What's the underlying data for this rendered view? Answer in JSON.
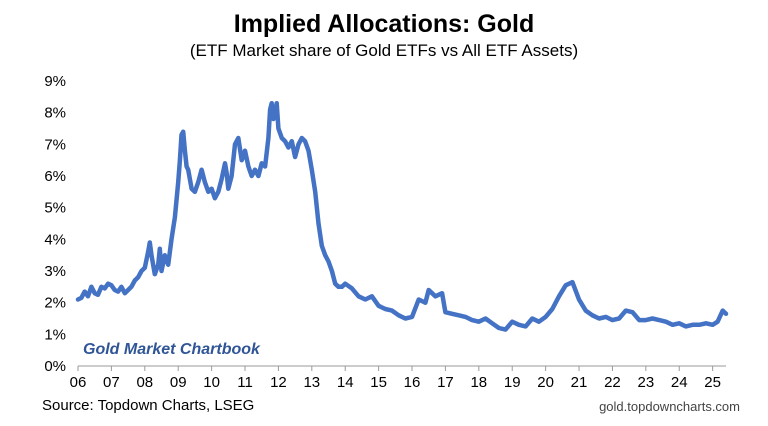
{
  "chart_data": {
    "type": "line",
    "title": "Implied Allocations: Gold",
    "subtitle": "(ETF Market share of Gold ETFs vs All ETF Assets)",
    "watermark": "Gold Market Chartbook",
    "source": "Source: Topdown Charts, LSEG",
    "site": "gold.topdowncharts.com",
    "color": "#4472c4",
    "ylim": [
      0,
      9
    ],
    "xlim": [
      2006,
      2025.4
    ],
    "yticks": [
      {
        "value": 0,
        "label": "0%"
      },
      {
        "value": 1,
        "label": "1%"
      },
      {
        "value": 2,
        "label": "2%"
      },
      {
        "value": 3,
        "label": "3%"
      },
      {
        "value": 4,
        "label": "4%"
      },
      {
        "value": 5,
        "label": "5%"
      },
      {
        "value": 6,
        "label": "6%"
      },
      {
        "value": 7,
        "label": "7%"
      },
      {
        "value": 8,
        "label": "8%"
      },
      {
        "value": 9,
        "label": "9%"
      }
    ],
    "xticks": [
      {
        "value": 2006,
        "label": "06"
      },
      {
        "value": 2007,
        "label": "07"
      },
      {
        "value": 2008,
        "label": "08"
      },
      {
        "value": 2009,
        "label": "09"
      },
      {
        "value": 2010,
        "label": "10"
      },
      {
        "value": 2011,
        "label": "11"
      },
      {
        "value": 2012,
        "label": "12"
      },
      {
        "value": 2013,
        "label": "13"
      },
      {
        "value": 2014,
        "label": "14"
      },
      {
        "value": 2015,
        "label": "15"
      },
      {
        "value": 2016,
        "label": "16"
      },
      {
        "value": 2017,
        "label": "17"
      },
      {
        "value": 2018,
        "label": "18"
      },
      {
        "value": 2019,
        "label": "19"
      },
      {
        "value": 2020,
        "label": "20"
      },
      {
        "value": 2021,
        "label": "21"
      },
      {
        "value": 2022,
        "label": "22"
      },
      {
        "value": 2023,
        "label": "23"
      },
      {
        "value": 2024,
        "label": "24"
      },
      {
        "value": 2025,
        "label": "25"
      }
    ],
    "series": [
      {
        "x": [
          2006.0,
          2006.1,
          2006.2,
          2006.3,
          2006.4,
          2006.5,
          2006.6,
          2006.7,
          2006.8,
          2006.9,
          2007.0,
          2007.1,
          2007.2,
          2007.3,
          2007.4,
          2007.5,
          2007.6,
          2007.7,
          2007.8,
          2007.9,
          2008.0,
          2008.1,
          2008.15,
          2008.2,
          2008.3,
          2008.4,
          2008.45,
          2008.5,
          2008.6,
          2008.7,
          2008.8,
          2008.9,
          2009.0,
          2009.05,
          2009.1,
          2009.15,
          2009.2,
          2009.25,
          2009.3,
          2009.4,
          2009.5,
          2009.6,
          2009.7,
          2009.8,
          2009.9,
          2010.0,
          2010.1,
          2010.2,
          2010.3,
          2010.4,
          2010.45,
          2010.5,
          2010.6,
          2010.7,
          2010.8,
          2010.9,
          2011.0,
          2011.1,
          2011.2,
          2011.3,
          2011.4,
          2011.5,
          2011.6,
          2011.7,
          2011.75,
          2011.8,
          2011.85,
          2011.9,
          2011.95,
          2012.0,
          2012.1,
          2012.2,
          2012.3,
          2012.4,
          2012.5,
          2012.6,
          2012.7,
          2012.8,
          2012.9,
          2013.0,
          2013.1,
          2013.2,
          2013.3,
          2013.4,
          2013.5,
          2013.6,
          2013.7,
          2013.8,
          2013.9,
          2014.0,
          2014.2,
          2014.4,
          2014.6,
          2014.8,
          2015.0,
          2015.2,
          2015.4,
          2015.6,
          2015.8,
          2016.0,
          2016.2,
          2016.4,
          2016.5,
          2016.7,
          2016.9,
          2017.0,
          2017.2,
          2017.4,
          2017.6,
          2017.8,
          2018.0,
          2018.2,
          2018.4,
          2018.6,
          2018.8,
          2019.0,
          2019.2,
          2019.4,
          2019.6,
          2019.8,
          2020.0,
          2020.2,
          2020.4,
          2020.6,
          2020.8,
          2021.0,
          2021.2,
          2021.4,
          2021.6,
          2021.8,
          2022.0,
          2022.2,
          2022.4,
          2022.6,
          2022.8,
          2023.0,
          2023.2,
          2023.4,
          2023.6,
          2023.8,
          2024.0,
          2024.2,
          2024.4,
          2024.6,
          2024.8,
          2025.0,
          2025.15,
          2025.3,
          2025.4
        ],
        "y": [
          2.1,
          2.15,
          2.35,
          2.2,
          2.5,
          2.3,
          2.25,
          2.5,
          2.45,
          2.6,
          2.55,
          2.4,
          2.35,
          2.5,
          2.3,
          2.4,
          2.5,
          2.7,
          2.8,
          3.0,
          3.1,
          3.6,
          3.9,
          3.5,
          2.9,
          3.2,
          3.7,
          3.0,
          3.5,
          3.2,
          4.0,
          4.7,
          5.8,
          6.5,
          7.3,
          7.4,
          6.8,
          6.3,
          6.2,
          5.6,
          5.5,
          5.8,
          6.2,
          5.8,
          5.5,
          5.6,
          5.3,
          5.5,
          5.9,
          6.4,
          6.1,
          5.6,
          6.0,
          7.0,
          7.2,
          6.5,
          6.8,
          6.3,
          6.0,
          6.2,
          6.0,
          6.4,
          6.3,
          7.2,
          8.1,
          8.3,
          7.8,
          8.0,
          8.3,
          7.5,
          7.2,
          7.1,
          6.9,
          7.1,
          6.6,
          7.0,
          7.2,
          7.1,
          6.8,
          6.2,
          5.5,
          4.5,
          3.8,
          3.5,
          3.3,
          3.0,
          2.6,
          2.5,
          2.5,
          2.6,
          2.45,
          2.2,
          2.1,
          2.2,
          1.9,
          1.8,
          1.75,
          1.6,
          1.5,
          1.55,
          2.1,
          2.0,
          2.4,
          2.2,
          2.3,
          1.7,
          1.65,
          1.6,
          1.55,
          1.45,
          1.4,
          1.5,
          1.35,
          1.2,
          1.15,
          1.4,
          1.3,
          1.25,
          1.5,
          1.4,
          1.55,
          1.8,
          2.2,
          2.55,
          2.65,
          2.1,
          1.75,
          1.6,
          1.5,
          1.55,
          1.45,
          1.5,
          1.75,
          1.7,
          1.45,
          1.45,
          1.5,
          1.45,
          1.4,
          1.3,
          1.35,
          1.25,
          1.3,
          1.3,
          1.35,
          1.3,
          1.4,
          1.75,
          1.65
        ]
      }
    ]
  }
}
